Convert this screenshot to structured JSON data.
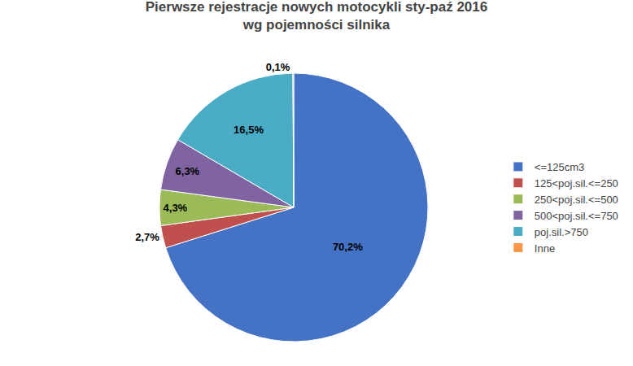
{
  "chart_data": {
    "type": "pie",
    "title": "Pierwsze rejestracje nowych motocykli sty-paź 2016\nwg pojemności silnika",
    "categories": [
      "<=125cm3",
      "125<poj.sil.<=250",
      "250<poj.sil.<=500",
      "500<poj.sil.<=750",
      "poj.sil.>750",
      "Inne"
    ],
    "values": [
      70.2,
      2.7,
      4.3,
      6.3,
      16.5,
      0.1
    ],
    "value_labels": [
      "70,2%",
      "2,7%",
      "4,3%",
      "6,3%",
      "16,5%",
      "0,1%"
    ],
    "colors": [
      "#4472C4",
      "#C0504D",
      "#9BBB59",
      "#8064A2",
      "#4BACC6",
      "#F79646"
    ],
    "data_labels": true,
    "legend": "right"
  }
}
